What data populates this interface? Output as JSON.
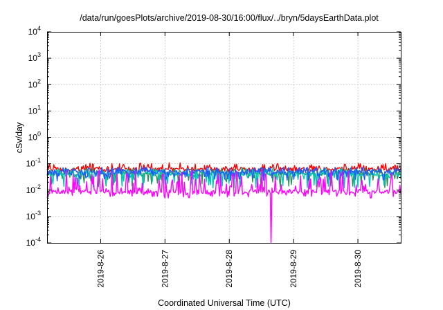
{
  "chart_data": {
    "type": "line",
    "title": "/data/run/goesPlots/archive/2019-08-30/16:00/flux/../bryn/5daysEarthData.plot",
    "xlabel": "Coordinated Universal Time (UTC)",
    "ylabel": "cSv/day",
    "yscale": "log",
    "ylim": [
      0.0001,
      10000
    ],
    "xlim": [
      "2019-08-25 04:00",
      "2019-08-30 16:00"
    ],
    "grid": true,
    "y_ticks": [
      {
        "base": "10",
        "exp": "-4"
      },
      {
        "base": "10",
        "exp": "-3"
      },
      {
        "base": "10",
        "exp": "-2"
      },
      {
        "base": "10",
        "exp": "-1"
      },
      {
        "base": "10",
        "exp": "0"
      },
      {
        "base": "10",
        "exp": "1"
      },
      {
        "base": "10",
        "exp": "2"
      },
      {
        "base": "10",
        "exp": "3"
      },
      {
        "base": "10",
        "exp": "4"
      }
    ],
    "x_ticks": [
      "2019-8-26",
      "2019-8-27",
      "2019-8-28",
      "2019-8-29",
      "2019-8-30"
    ],
    "series": [
      {
        "color": "#ff0000",
        "typical": 0.062,
        "low": 0.045,
        "high": 0.11
      },
      {
        "color": "#2a8f5a",
        "typical": 0.042,
        "low": 0.012,
        "high": 0.07
      },
      {
        "color": "#00c8b4",
        "typical": 0.04,
        "low": 0.012,
        "high": 0.07
      },
      {
        "color": "#1e5aff",
        "typical": 0.048,
        "low": 0.022,
        "high": 0.075
      },
      {
        "color": "#ff00ff",
        "typical": 0.0085,
        "low": 0.005,
        "high": 0.06,
        "min": 0.0001,
        "min_at": "2019-08-28 15:40"
      }
    ]
  }
}
